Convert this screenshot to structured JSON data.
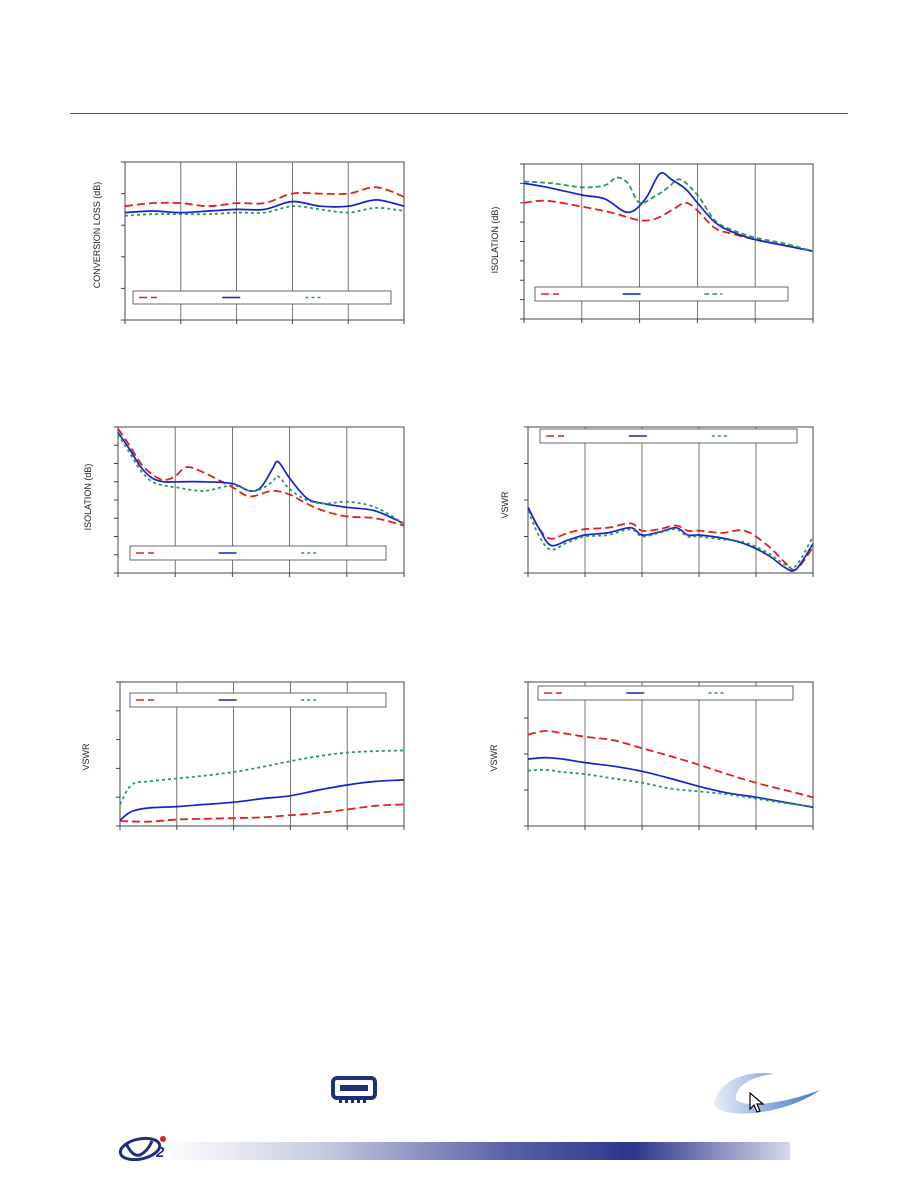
{
  "charts_layout": [
    "c1",
    "c2",
    "c3",
    "c4",
    "c5",
    "c6"
  ],
  "colors": {
    "red": "#e0201b",
    "blue": "#1424c8",
    "green": "#2f9467",
    "frame": "#444444",
    "grid": "#555555"
  },
  "icons": {
    "package": "mixer-package-icon",
    "swoosh": "swoosh-logo-icon",
    "cursor": "mouse-cursor-icon",
    "logo": "company-logo"
  },
  "chart_data": [
    {
      "id": "c1",
      "type": "line",
      "ylabel": "CONVERSION LOSS (dB)",
      "xlim": [
        0,
        5
      ],
      "ylim": [
        0,
        5
      ],
      "yticks": 6,
      "xticks": 6,
      "legend": "bottom",
      "series": [
        {
          "name": "",
          "color": "red",
          "dash": "8,4",
          "x": [
            0,
            0.5,
            1,
            1.5,
            2,
            2.5,
            3,
            3.5,
            4,
            4.5,
            5
          ],
          "y": [
            3.6,
            3.7,
            3.7,
            3.6,
            3.7,
            3.7,
            4.0,
            4.0,
            4.0,
            4.2,
            3.9
          ]
        },
        {
          "name": "",
          "color": "blue",
          "dash": "",
          "x": [
            0,
            0.5,
            1,
            1.5,
            2,
            2.5,
            3,
            3.5,
            4,
            4.5,
            5
          ],
          "y": [
            3.4,
            3.45,
            3.4,
            3.45,
            3.5,
            3.5,
            3.75,
            3.6,
            3.6,
            3.8,
            3.6
          ]
        },
        {
          "name": "",
          "color": "green",
          "dash": "3,3",
          "x": [
            0,
            0.5,
            1,
            1.5,
            2,
            2.5,
            3,
            3.5,
            4,
            4.5,
            5
          ],
          "y": [
            3.3,
            3.35,
            3.35,
            3.35,
            3.4,
            3.4,
            3.6,
            3.5,
            3.4,
            3.55,
            3.45
          ]
        }
      ]
    },
    {
      "id": "c2",
      "type": "line",
      "ylabel": "ISOLATION (dB)",
      "xlim": [
        0,
        5
      ],
      "ylim": [
        0,
        8
      ],
      "yticks": 9,
      "xticks": 6,
      "legend": "bottom",
      "series": [
        {
          "name": "",
          "color": "red",
          "dash": "8,4",
          "x": [
            0,
            0.4,
            1,
            1.5,
            2,
            2.3,
            2.6,
            2.8,
            3,
            3.3,
            3.6,
            4,
            4.5,
            5
          ],
          "y": [
            6.0,
            6.1,
            5.8,
            5.5,
            5.1,
            5.2,
            5.7,
            6.0,
            5.6,
            4.7,
            4.4,
            4.1,
            3.8,
            3.5
          ]
        },
        {
          "name": "",
          "color": "blue",
          "dash": "",
          "x": [
            0,
            0.4,
            1,
            1.4,
            1.8,
            2.1,
            2.35,
            2.55,
            2.8,
            3,
            3.3,
            3.6,
            4,
            4.5,
            5
          ],
          "y": [
            7.0,
            6.8,
            6.4,
            6.2,
            5.5,
            6.2,
            7.5,
            7.2,
            6.7,
            6.0,
            5.0,
            4.5,
            4.1,
            3.8,
            3.5
          ]
        },
        {
          "name": "",
          "color": "green",
          "dash": "5,3",
          "x": [
            0,
            0.5,
            1,
            1.4,
            1.6,
            1.8,
            2,
            2.3,
            2.5,
            2.7,
            3,
            3.3,
            3.6,
            4,
            4.5,
            5
          ],
          "y": [
            7.1,
            7.0,
            6.8,
            6.9,
            7.3,
            7.0,
            6.0,
            6.4,
            6.8,
            7.2,
            6.4,
            5.1,
            4.6,
            4.2,
            3.9,
            3.5
          ]
        }
      ]
    },
    {
      "id": "c3",
      "type": "line",
      "ylabel": "ISOLATION (dB)",
      "xlim": [
        0,
        5
      ],
      "ylim": [
        0,
        8
      ],
      "yticks": 9,
      "xticks": 6,
      "legend": "bottom",
      "series": [
        {
          "name": "",
          "color": "red",
          "dash": "8,4",
          "x": [
            0,
            0.2,
            0.4,
            0.6,
            0.8,
            1,
            1.2,
            1.5,
            2,
            2.3,
            2.7,
            3,
            3.3,
            3.6,
            4,
            4.5,
            5
          ],
          "y": [
            7.9,
            7.0,
            6.0,
            5.4,
            5.1,
            5.3,
            5.8,
            5.5,
            4.7,
            4.2,
            4.5,
            4.3,
            3.8,
            3.4,
            3.1,
            3.0,
            2.6
          ]
        },
        {
          "name": "",
          "color": "blue",
          "dash": "",
          "x": [
            0,
            0.2,
            0.4,
            0.6,
            0.8,
            1,
            1.5,
            2,
            2.3,
            2.5,
            2.7,
            2.8,
            3,
            3.3,
            3.6,
            4,
            4.5,
            5
          ],
          "y": [
            7.7,
            6.8,
            5.8,
            5.2,
            5.0,
            5.0,
            5.0,
            4.9,
            4.5,
            4.7,
            5.7,
            6.1,
            5.2,
            4.1,
            3.8,
            3.6,
            3.4,
            2.7
          ]
        },
        {
          "name": "",
          "color": "green",
          "dash": "3,3",
          "x": [
            0,
            0.2,
            0.4,
            0.6,
            0.8,
            1,
            1.5,
            2,
            2.3,
            2.5,
            2.7,
            2.8,
            3,
            3.3,
            3.6,
            4,
            4.5,
            5
          ],
          "y": [
            7.6,
            6.6,
            5.6,
            5.0,
            4.8,
            4.7,
            4.5,
            4.8,
            4.5,
            4.6,
            5.0,
            5.3,
            4.6,
            4.0,
            3.8,
            3.9,
            3.6,
            2.7
          ]
        }
      ]
    },
    {
      "id": "c4",
      "type": "line",
      "ylabel": "VSWR",
      "xlim": [
        0,
        5
      ],
      "ylim": [
        1,
        3
      ],
      "yticks": 5,
      "xticks": 6,
      "legend": "top",
      "series": [
        {
          "name": "",
          "color": "red",
          "dash": "8,4",
          "x": [
            0,
            0.2,
            0.4,
            0.7,
            1,
            1.4,
            1.8,
            2,
            2.3,
            2.6,
            2.8,
            3,
            3.4,
            3.8,
            4.2,
            4.5,
            4.7,
            5
          ],
          "y": [
            1.9,
            1.6,
            1.47,
            1.55,
            1.6,
            1.62,
            1.68,
            1.58,
            1.6,
            1.65,
            1.58,
            1.58,
            1.55,
            1.58,
            1.38,
            1.15,
            1.05,
            1.35
          ]
        },
        {
          "name": "",
          "color": "blue",
          "dash": "",
          "x": [
            0,
            0.2,
            0.4,
            0.7,
            1,
            1.4,
            1.8,
            2,
            2.3,
            2.6,
            2.8,
            3,
            3.4,
            3.8,
            4.2,
            4.5,
            4.7,
            5
          ],
          "y": [
            1.9,
            1.6,
            1.38,
            1.45,
            1.52,
            1.55,
            1.62,
            1.52,
            1.56,
            1.62,
            1.52,
            1.52,
            1.48,
            1.4,
            1.25,
            1.08,
            1.05,
            1.4
          ]
        },
        {
          "name": "",
          "color": "green",
          "dash": "3,3",
          "x": [
            0,
            0.2,
            0.4,
            0.7,
            1,
            1.4,
            1.8,
            2,
            2.3,
            2.6,
            2.8,
            3,
            3.4,
            3.8,
            4.2,
            4.5,
            4.7,
            5
          ],
          "y": [
            1.85,
            1.5,
            1.32,
            1.42,
            1.5,
            1.52,
            1.6,
            1.5,
            1.55,
            1.6,
            1.5,
            1.5,
            1.46,
            1.42,
            1.28,
            1.12,
            1.1,
            1.5
          ]
        }
      ]
    },
    {
      "id": "c5",
      "type": "line",
      "ylabel": "VSWR",
      "xlim": [
        0,
        5
      ],
      "ylim": [
        1,
        3
      ],
      "yticks": 6,
      "xticks": 6,
      "legend": "top",
      "series": [
        {
          "name": "",
          "color": "red",
          "dash": "8,4",
          "x": [
            0,
            0.5,
            1,
            1.5,
            2,
            2.5,
            3,
            3.5,
            4,
            4.5,
            5
          ],
          "y": [
            1.07,
            1.06,
            1.09,
            1.1,
            1.11,
            1.12,
            1.15,
            1.18,
            1.23,
            1.28,
            1.3
          ]
        },
        {
          "name": "",
          "color": "blue",
          "dash": "",
          "x": [
            0,
            0.2,
            0.5,
            1,
            1.5,
            2,
            2.5,
            3,
            3.5,
            4,
            4.5,
            5
          ],
          "y": [
            1.08,
            1.2,
            1.25,
            1.27,
            1.3,
            1.33,
            1.38,
            1.42,
            1.5,
            1.57,
            1.62,
            1.64
          ]
        },
        {
          "name": "",
          "color": "green",
          "dash": "3,3",
          "x": [
            0,
            0.2,
            0.5,
            1,
            1.5,
            2,
            2.5,
            3,
            3.5,
            4,
            4.5,
            5
          ],
          "y": [
            1.3,
            1.57,
            1.62,
            1.66,
            1.7,
            1.75,
            1.82,
            1.9,
            1.97,
            2.02,
            2.04,
            2.05
          ]
        }
      ]
    },
    {
      "id": "c6",
      "type": "line",
      "ylabel": "VSWR",
      "xlim": [
        0,
        5
      ],
      "ylim": [
        1,
        3
      ],
      "yticks": 5,
      "xticks": 6,
      "legend": "top",
      "series": [
        {
          "name": "",
          "color": "red",
          "dash": "8,4",
          "x": [
            0,
            0.3,
            0.6,
            1,
            1.5,
            2,
            2.5,
            3,
            3.5,
            4,
            4.5,
            5
          ],
          "y": [
            2.27,
            2.32,
            2.29,
            2.24,
            2.19,
            2.08,
            1.97,
            1.85,
            1.72,
            1.6,
            1.5,
            1.4
          ]
        },
        {
          "name": "",
          "color": "blue",
          "dash": "",
          "x": [
            0,
            0.3,
            0.6,
            1,
            1.5,
            2,
            2.5,
            3,
            3.5,
            4,
            4.5,
            5
          ],
          "y": [
            1.93,
            1.95,
            1.93,
            1.88,
            1.83,
            1.76,
            1.66,
            1.55,
            1.46,
            1.4,
            1.33,
            1.26
          ]
        },
        {
          "name": "",
          "color": "green",
          "dash": "3,3",
          "x": [
            0,
            0.3,
            0.6,
            1,
            1.5,
            2,
            2.5,
            3,
            3.5,
            4,
            4.5,
            5
          ],
          "y": [
            1.77,
            1.78,
            1.75,
            1.72,
            1.66,
            1.6,
            1.52,
            1.48,
            1.44,
            1.38,
            1.32,
            1.27
          ]
        }
      ]
    }
  ]
}
